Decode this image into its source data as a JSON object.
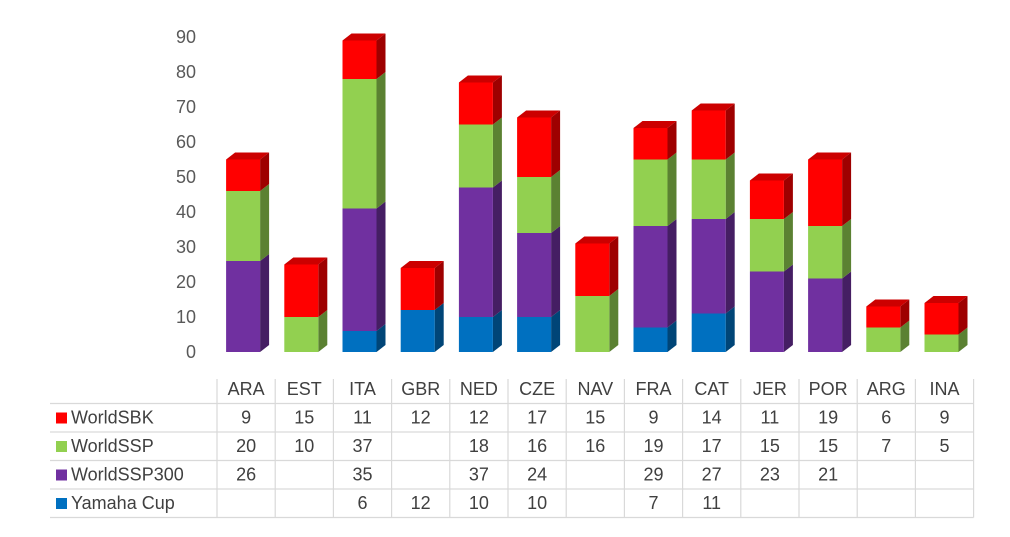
{
  "chart_data": {
    "type": "bar",
    "stacked": true,
    "style": "3d-column",
    "categories": [
      "ARA",
      "EST",
      "ITA",
      "GBR",
      "NED",
      "CZE",
      "NAV",
      "FRA",
      "CAT",
      "JER",
      "POR",
      "ARG",
      "INA"
    ],
    "series": [
      {
        "name": "Yamaha Cup",
        "color": "#0070c0",
        "values": [
          null,
          null,
          6,
          12,
          10,
          10,
          null,
          7,
          11,
          null,
          null,
          null,
          null
        ]
      },
      {
        "name": "WorldSSP300",
        "color": "#7030a0",
        "values": [
          26,
          null,
          35,
          null,
          37,
          24,
          null,
          29,
          27,
          23,
          21,
          null,
          null
        ]
      },
      {
        "name": "WorldSSP",
        "color": "#92d050",
        "values": [
          20,
          10,
          37,
          null,
          18,
          16,
          16,
          19,
          17,
          15,
          15,
          7,
          5
        ]
      },
      {
        "name": "WorldSBK",
        "color": "#ff0000",
        "values": [
          9,
          15,
          11,
          12,
          12,
          17,
          15,
          9,
          14,
          11,
          19,
          6,
          9
        ]
      }
    ],
    "yticks": [
      "0",
      "10",
      "20",
      "30",
      "40",
      "50",
      "60",
      "70",
      "80",
      "90"
    ],
    "ylim": [
      0,
      90
    ],
    "data_table": true,
    "table_row_order": [
      "WorldSBK",
      "WorldSSP",
      "WorldSSP300",
      "Yamaha Cup"
    ]
  }
}
